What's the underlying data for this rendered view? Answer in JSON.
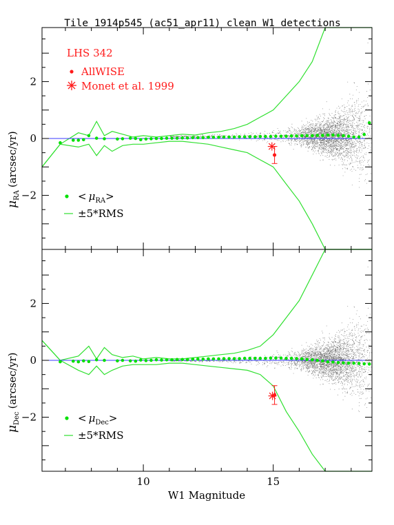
{
  "title": "Tile 1914p545 (ac51_apr11) clean W1 detections",
  "colors": {
    "mean": "#00e000",
    "band": "#2fe02f",
    "zero_line": "#3a3aff",
    "source": "#ff1a1a",
    "scatter": "#000000"
  },
  "chart_data": [
    {
      "type": "scatter",
      "panel": "top",
      "xlabel": "W1 Magnitude",
      "ylabel_main": "μ",
      "ylabel_sub": "RA",
      "ylabel_unit": "(arcsec/yr)",
      "xlim": [
        6.1,
        18.8
      ],
      "ylim": [
        -3.9,
        3.9
      ],
      "xticks": [
        "10",
        "15"
      ],
      "yticks": [
        "−2",
        "0",
        "2"
      ],
      "source_legend": {
        "name": "LHS 342",
        "allwise": "AllWISE",
        "monet": "Monet et al. 1999"
      },
      "series_legend": {
        "mean_pre": "<",
        "mean_mu": "μ",
        "mean_sub": "RA",
        "mean_post": ">",
        "band": "±5*RMS"
      },
      "mean_x": [
        6.8,
        7.3,
        7.5,
        7.7,
        7.9,
        8.2,
        8.5,
        9.0,
        9.2,
        9.5,
        9.7,
        9.9,
        10.1,
        10.3,
        10.5,
        10.7,
        10.9,
        11.1,
        11.3,
        11.5,
        11.7,
        11.9,
        12.1,
        12.3,
        12.5,
        12.7,
        12.9,
        13.1,
        13.3,
        13.5,
        13.7,
        13.9,
        14.1,
        14.3,
        14.5,
        14.7,
        14.9,
        15.1,
        15.3,
        15.5,
        15.7,
        15.9,
        16.1,
        16.3,
        16.5,
        16.7,
        16.9,
        17.1,
        17.3,
        17.5,
        17.7,
        17.9,
        18.1,
        18.3,
        18.5,
        18.7
      ],
      "mean_y": [
        -0.15,
        -0.06,
        -0.06,
        -0.04,
        0.1,
        0.01,
        -0.01,
        -0.02,
        -0.01,
        0.01,
        0.0,
        -0.04,
        -0.02,
        -0.01,
        0.0,
        0.0,
        0.01,
        0.01,
        0.01,
        0.02,
        0.02,
        0.03,
        0.03,
        0.03,
        0.04,
        0.04,
        0.04,
        0.05,
        0.05,
        0.05,
        0.06,
        0.06,
        0.06,
        0.06,
        0.07,
        0.07,
        0.07,
        0.08,
        0.08,
        0.08,
        0.09,
        0.09,
        0.1,
        0.1,
        0.1,
        0.11,
        0.11,
        0.12,
        0.12,
        0.11,
        0.1,
        0.08,
        0.05,
        0.05,
        0.14,
        0.55
      ],
      "band_x": [
        6.1,
        6.8,
        7.5,
        7.9,
        8.2,
        8.5,
        8.8,
        9.2,
        9.6,
        10.0,
        10.5,
        11.0,
        11.5,
        12.0,
        12.5,
        13.0,
        13.5,
        14.0,
        14.5,
        15.0,
        15.5,
        16.0,
        16.5,
        17.0,
        17.5,
        18.0,
        18.5,
        18.8
      ],
      "band_upper": [
        -1.0,
        -0.2,
        0.2,
        0.1,
        0.6,
        0.1,
        0.25,
        0.15,
        0.05,
        0.1,
        0.05,
        0.1,
        0.15,
        0.12,
        0.2,
        0.25,
        0.35,
        0.5,
        0.75,
        1.0,
        1.5,
        2.0,
        2.7,
        3.9,
        3.9,
        3.9,
        3.9,
        3.9
      ],
      "band_lower": [
        -1.0,
        -0.2,
        -0.3,
        -0.2,
        -0.6,
        -0.25,
        -0.45,
        -0.25,
        -0.2,
        -0.2,
        -0.15,
        -0.1,
        -0.1,
        -0.15,
        -0.2,
        -0.3,
        -0.4,
        -0.5,
        -0.75,
        -1.0,
        -1.6,
        -2.2,
        -3.0,
        -3.9,
        -3.9,
        -3.9,
        -3.9,
        -3.9
      ],
      "allwise": {
        "x": 15.05,
        "y": -0.58,
        "err": 0.3
      },
      "monet": {
        "x": 14.95,
        "y": -0.28
      }
    },
    {
      "type": "scatter",
      "panel": "bottom",
      "xlabel": "W1 Magnitude",
      "ylabel_main": "μ",
      "ylabel_sub": "Dec",
      "ylabel_unit": "(arcsec/yr)",
      "xlim": [
        6.1,
        18.8
      ],
      "ylim": [
        -3.9,
        3.9
      ],
      "xticks": [
        "10",
        "15"
      ],
      "yticks": [
        "−2",
        "0",
        "2"
      ],
      "series_legend": {
        "mean_pre": "<",
        "mean_mu": "μ",
        "mean_sub": "Dec",
        "mean_post": ">",
        "band": "±5*RMS"
      },
      "mean_x": [
        6.8,
        7.3,
        7.5,
        7.7,
        7.9,
        8.2,
        8.5,
        9.0,
        9.2,
        9.5,
        9.7,
        9.9,
        10.1,
        10.3,
        10.5,
        10.7,
        10.9,
        11.1,
        11.3,
        11.5,
        11.7,
        11.9,
        12.1,
        12.3,
        12.5,
        12.7,
        12.9,
        13.1,
        13.3,
        13.5,
        13.7,
        13.9,
        14.1,
        14.3,
        14.5,
        14.7,
        14.9,
        15.1,
        15.3,
        15.5,
        15.7,
        15.9,
        16.1,
        16.3,
        16.5,
        16.7,
        16.9,
        17.1,
        17.3,
        17.5,
        17.7,
        17.9,
        18.1,
        18.3,
        18.5,
        18.7
      ],
      "mean_y": [
        -0.05,
        -0.03,
        -0.05,
        -0.02,
        -0.04,
        0.02,
        0.0,
        -0.02,
        0.0,
        -0.02,
        -0.03,
        0.01,
        -0.01,
        0.0,
        0.02,
        0.01,
        0.02,
        0.02,
        0.03,
        0.03,
        0.03,
        0.04,
        0.04,
        0.04,
        0.05,
        0.05,
        0.05,
        0.06,
        0.06,
        0.06,
        0.06,
        0.07,
        0.07,
        0.07,
        0.07,
        0.07,
        0.08,
        0.08,
        0.08,
        0.07,
        0.07,
        0.06,
        0.05,
        0.03,
        0.02,
        0.0,
        -0.02,
        -0.05,
        -0.06,
        -0.08,
        -0.09,
        -0.1,
        -0.1,
        -0.11,
        -0.12,
        -0.13
      ],
      "band_x": [
        6.1,
        6.8,
        7.5,
        7.9,
        8.2,
        8.5,
        8.8,
        9.2,
        9.6,
        10.0,
        10.5,
        11.0,
        11.5,
        12.0,
        12.5,
        13.0,
        13.5,
        14.0,
        14.5,
        15.0,
        15.5,
        16.0,
        16.5,
        17.0,
        17.5,
        18.0,
        18.5,
        18.8
      ],
      "band_upper": [
        0.7,
        0.0,
        0.15,
        0.5,
        0.05,
        0.45,
        0.2,
        0.1,
        0.15,
        0.05,
        0.1,
        0.05,
        0.05,
        0.1,
        0.15,
        0.2,
        0.25,
        0.35,
        0.5,
        0.9,
        1.5,
        2.1,
        3.0,
        3.9,
        3.9,
        3.9,
        3.9,
        3.9
      ],
      "band_lower": [
        0.7,
        0.0,
        -0.35,
        -0.5,
        -0.2,
        -0.5,
        -0.35,
        -0.2,
        -0.15,
        -0.15,
        -0.15,
        -0.1,
        -0.1,
        -0.15,
        -0.2,
        -0.25,
        -0.3,
        -0.35,
        -0.5,
        -0.9,
        -1.8,
        -2.5,
        -3.3,
        -3.9,
        -3.9,
        -3.9,
        -3.9,
        -3.9
      ],
      "allwise": {
        "x": 15.05,
        "y": -1.22,
        "err": 0.33
      },
      "monet": {
        "x": 14.97,
        "y": -1.25
      }
    }
  ]
}
